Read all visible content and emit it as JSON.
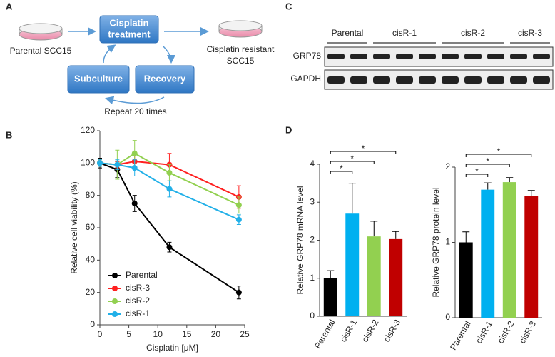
{
  "diagram": {
    "panel": "A",
    "start": "Parental SCC15",
    "treatment": [
      "Cisplatin",
      "treatment"
    ],
    "end": [
      "Cisplatin resistant",
      "SCC15"
    ],
    "subculture": "Subculture",
    "recovery": "Recovery",
    "repeat": "Repeat 20 times"
  },
  "blot": {
    "panel": "C",
    "groups": [
      {
        "label": "Parental",
        "lanes": 2
      },
      {
        "label": "cisR-1",
        "lanes": 3
      },
      {
        "label": "cisR-2",
        "lanes": 3
      },
      {
        "label": "cisR-3",
        "lanes": 2
      }
    ],
    "rows": [
      "GRP78",
      "GAPDH"
    ]
  },
  "chart_data": [
    {
      "type": "line",
      "panel": "B",
      "xlabel": "Cisplatin [μM]",
      "ylabel": "Relative cell viability (%)",
      "x": [
        0,
        3,
        6,
        12,
        24
      ],
      "xlim": [
        0,
        25
      ],
      "xticks": [
        0,
        5,
        10,
        15,
        20,
        25
      ],
      "ylim": [
        0,
        120
      ],
      "yticks": [
        0,
        20,
        40,
        60,
        80,
        100,
        120
      ],
      "legend": "lower-left",
      "series": [
        {
          "name": "Parental",
          "color": "#000000",
          "values": [
            100,
            96,
            75,
            48,
            20
          ],
          "errors": [
            3,
            5,
            5,
            3,
            4
          ]
        },
        {
          "name": "cisR-3",
          "color": "#ff2020",
          "values": [
            100,
            99,
            101,
            99,
            79
          ],
          "errors": [
            2,
            2,
            4,
            7,
            7
          ]
        },
        {
          "name": "cisR-2",
          "color": "#92d050",
          "values": [
            100,
            99,
            106,
            94,
            74
          ],
          "errors": [
            2,
            9,
            8,
            5,
            5
          ]
        },
        {
          "name": "cisR-1",
          "color": "#22b0e8",
          "values": [
            100,
            99,
            97,
            84,
            65
          ],
          "errors": [
            2,
            3,
            5,
            5,
            3
          ]
        }
      ]
    },
    {
      "type": "bar",
      "panel": "D",
      "ylabel": "Relative GRP78 mRNA level",
      "categories": [
        "Parental",
        "cisR-1",
        "cisR-2",
        "cisR-3"
      ],
      "values": [
        1,
        2.7,
        2.1,
        2.03
      ],
      "errors": [
        0.2,
        0.8,
        0.4,
        0.2
      ],
      "colors": [
        "#000000",
        "#00b0f0",
        "#92d050",
        "#c00000"
      ],
      "ylim": [
        0,
        4
      ],
      "yticks": [
        0,
        1,
        2,
        3,
        4
      ],
      "annotations": [
        {
          "text": "*",
          "between": [
            "Parental",
            "cisR-1"
          ]
        },
        {
          "text": "*",
          "between": [
            "Parental",
            "cisR-2"
          ]
        },
        {
          "text": "*",
          "between": [
            "Parental",
            "cisR-3"
          ]
        }
      ]
    },
    {
      "type": "bar",
      "ylabel": "Relative  GRP78 protein level",
      "categories": [
        "Parental",
        "cisR-1",
        "cisR-2",
        "cisR-3"
      ],
      "values": [
        1,
        1.7,
        1.8,
        1.62
      ],
      "errors": [
        0.14,
        0.09,
        0.06,
        0.07
      ],
      "colors": [
        "#000000",
        "#00b0f0",
        "#92d050",
        "#c00000"
      ],
      "ylim": [
        0,
        2
      ],
      "yticks": [
        0,
        1,
        2
      ],
      "annotations": [
        {
          "text": "*",
          "between": [
            "Parental",
            "cisR-1"
          ]
        },
        {
          "text": "*",
          "between": [
            "Parental",
            "cisR-2"
          ]
        },
        {
          "text": "*",
          "between": [
            "Parental",
            "cisR-3"
          ]
        }
      ]
    }
  ]
}
